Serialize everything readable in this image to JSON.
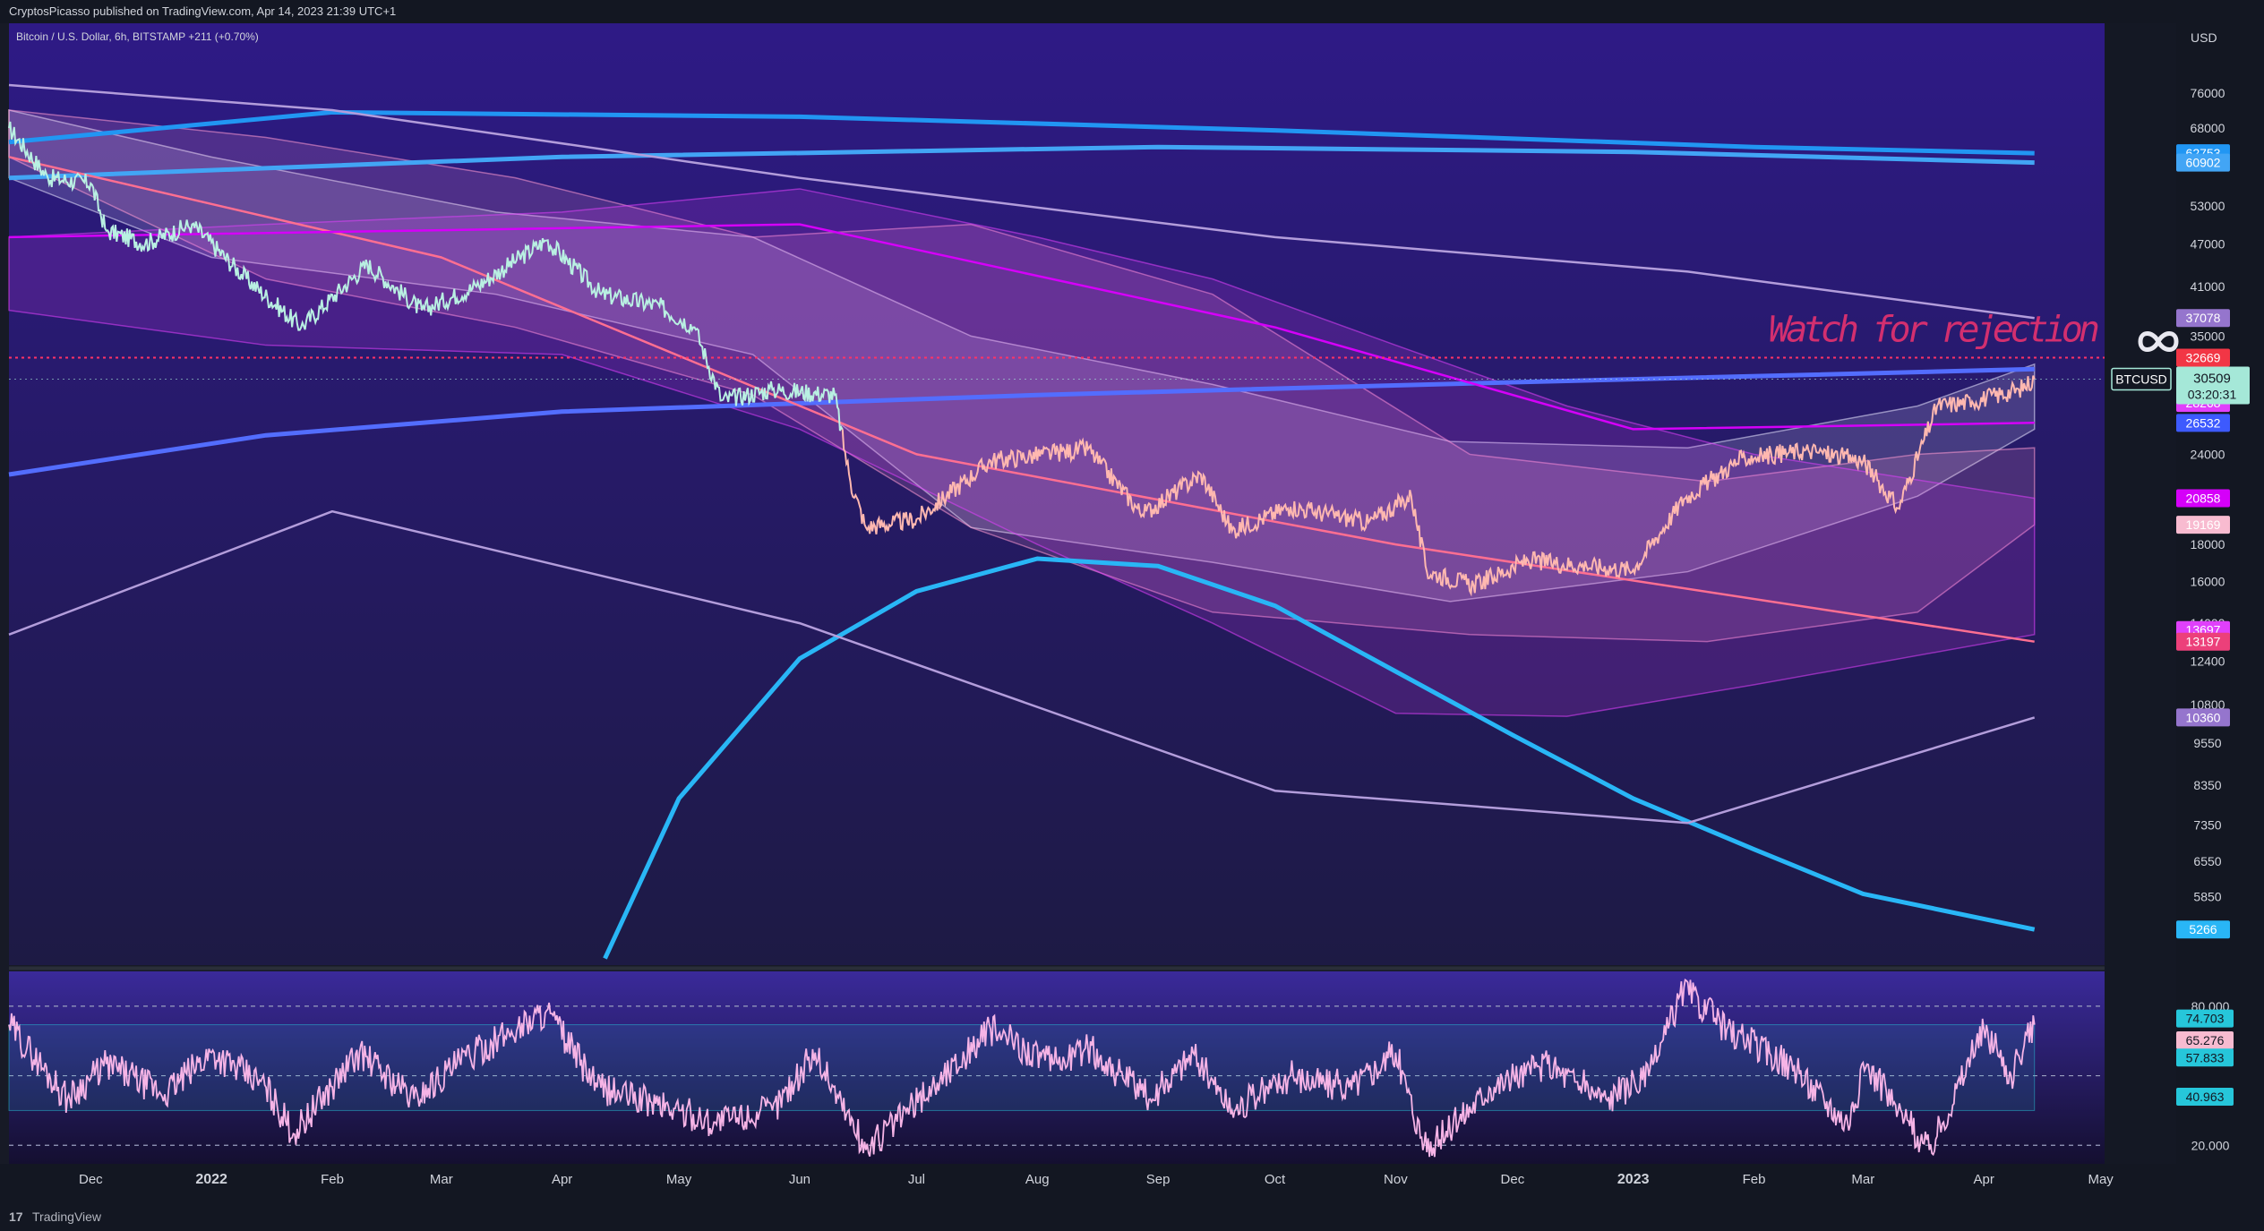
{
  "header": {
    "published": "CryptosPicasso published on TradingView.com, Apr 14, 2023 21:39 UTC+1"
  },
  "footer": {
    "logo_mark": "17",
    "brand": "TradingView"
  },
  "chart_data": [
    {
      "type": "line",
      "symbol_label": "Bitcoin / U.S. Dollar, 6h, BITSTAMP  +211 (+0.70%)",
      "currency": "USD",
      "annotation": "Watch for rejection",
      "annotation_icon": "infinity-icon",
      "scale": "log",
      "ylim": [
        4700,
        95000
      ],
      "y_ticks": [
        76000,
        68000,
        53000,
        47000,
        41000,
        35000,
        24000,
        18000,
        16000,
        14000,
        12400,
        10800,
        9550,
        8350,
        7350,
        6550,
        5850
      ],
      "x_ticks": [
        "Dec",
        "2022",
        "Feb",
        "Mar",
        "Apr",
        "May",
        "Jun",
        "Jul",
        "Aug",
        "Sep",
        "Oct",
        "Nov",
        "Dec",
        "2023",
        "Feb",
        "Mar",
        "Apr",
        "May"
      ],
      "x_tick_dates": [
        "2021-12-01",
        "2022-01-01",
        "2022-02-01",
        "2022-03-01",
        "2022-04-01",
        "2022-05-01",
        "2022-06-01",
        "2022-07-01",
        "2022-08-01",
        "2022-09-01",
        "2022-10-01",
        "2022-11-01",
        "2022-12-01",
        "2023-01-01",
        "2023-02-01",
        "2023-03-01",
        "2023-04-01",
        "2023-05-01"
      ],
      "xlim": [
        "2021-11-10",
        "2023-05-02"
      ],
      "price_series": {
        "name": "BTCUSD",
        "dates": [
          "2021-11-10",
          "2021-11-20",
          "2021-12-01",
          "2021-12-05",
          "2021-12-15",
          "2021-12-27",
          "2022-01-10",
          "2022-01-24",
          "2022-02-10",
          "2022-02-24",
          "2022-03-10",
          "2022-03-28",
          "2022-04-11",
          "2022-04-26",
          "2022-05-05",
          "2022-05-12",
          "2022-05-25",
          "2022-06-10",
          "2022-06-14",
          "2022-06-18",
          "2022-07-01",
          "2022-07-20",
          "2022-08-14",
          "2022-08-28",
          "2022-09-12",
          "2022-09-20",
          "2022-10-05",
          "2022-10-25",
          "2022-11-05",
          "2022-11-09",
          "2022-11-21",
          "2022-12-05",
          "2022-12-20",
          "2023-01-01",
          "2023-01-14",
          "2023-01-29",
          "2023-02-15",
          "2023-03-01",
          "2023-03-10",
          "2023-03-20",
          "2023-03-29",
          "2023-04-10",
          "2023-04-14"
        ],
        "values": [
          68000,
          58000,
          57000,
          49000,
          47000,
          50000,
          42000,
          36000,
          44000,
          38000,
          41000,
          47500,
          40000,
          38500,
          36000,
          28500,
          29500,
          29000,
          22000,
          19000,
          19500,
          23500,
          24400,
          19800,
          22500,
          18800,
          20300,
          19300,
          21000,
          16500,
          15800,
          17100,
          16800,
          16600,
          20800,
          23700,
          24300,
          23500,
          20200,
          28000,
          28400,
          29500,
          30509
        ]
      },
      "bands": [
        {
          "dates": [
            "2021-11-10",
            "2022-01-01",
            "2022-03-15",
            "2022-05-20",
            "2022-07-15",
            "2022-09-15",
            "2022-11-15",
            "2023-01-15",
            "2023-03-15",
            "2023-04-14"
          ],
          "upper": [
            72000,
            62000,
            52000,
            48000,
            35000,
            30000,
            25000,
            24500,
            28000,
            32000
          ],
          "lower": [
            58000,
            45000,
            40000,
            33000,
            19000,
            17000,
            15000,
            16500,
            21000,
            26000
          ],
          "color": "#e8e6ff"
        },
        {
          "dates": [
            "2021-11-10",
            "2022-01-15",
            "2022-03-20",
            "2022-05-20",
            "2022-07-15",
            "2022-09-15",
            "2022-11-20",
            "2023-01-20",
            "2023-03-15",
            "2023-04-14"
          ],
          "upper": [
            72000,
            66000,
            58000,
            48000,
            50000,
            40000,
            24000,
            22000,
            24000,
            24500
          ],
          "lower": [
            62000,
            42000,
            36000,
            29000,
            19000,
            14500,
            13500,
            13200,
            14500,
            19169
          ],
          "color": "#ff9ad1"
        },
        {
          "dates": [
            "2021-11-10",
            "2022-01-15",
            "2022-04-01",
            "2022-06-01",
            "2022-08-01",
            "2022-09-15",
            "2022-11-01",
            "2022-12-15",
            "2023-02-01",
            "2023-04-14"
          ],
          "upper": [
            48000,
            50000,
            52000,
            56000,
            48000,
            42000,
            34000,
            28000,
            24000,
            20858
          ],
          "lower": [
            38000,
            34000,
            33000,
            26000,
            18000,
            14000,
            10500,
            10400,
            11500,
            13500
          ],
          "color": "#e040fb"
        }
      ],
      "lines": [
        {
          "dates": [
            "2021-11-10",
            "2022-02-01",
            "2022-06-01",
            "2022-10-01",
            "2023-02-01",
            "2023-04-14"
          ],
          "values": [
            65000,
            71500,
            70500,
            67500,
            64000,
            62753
          ],
          "color": "#2196f3"
        },
        {
          "dates": [
            "2021-11-10",
            "2022-04-01",
            "2022-09-01",
            "2023-01-01",
            "2023-04-14"
          ],
          "values": [
            58000,
            62000,
            64000,
            63000,
            60902
          ],
          "color": "#42a5f5"
        },
        {
          "dates": [
            "2021-11-10",
            "2022-01-15",
            "2022-04-01",
            "2022-08-01",
            "2022-12-01",
            "2023-04-14"
          ],
          "values": [
            22500,
            25500,
            27500,
            29000,
            30200,
            31500
          ],
          "color": "#536dfe"
        },
        {
          "dates": [
            "2022-04-12",
            "2022-05-01",
            "2022-06-01",
            "2022-07-01",
            "2022-08-01",
            "2022-09-01",
            "2022-10-01",
            "2022-11-01",
            "2022-12-01",
            "2023-01-01",
            "2023-02-01",
            "2023-03-01",
            "2023-04-14"
          ],
          "values": [
            4800,
            8000,
            12500,
            15500,
            17200,
            16800,
            14800,
            12000,
            9800,
            8000,
            6800,
            5900,
            5266
          ],
          "color": "#29b6f6"
        },
        {
          "dates": [
            "2021-11-10",
            "2022-02-01",
            "2022-06-01",
            "2022-10-01",
            "2023-01-15",
            "2023-04-14"
          ],
          "values": [
            78000,
            72000,
            58000,
            48000,
            43000,
            37078
          ],
          "color": "#b39ddb"
        },
        {
          "dates": [
            "2021-11-10",
            "2022-02-01",
            "2022-06-01",
            "2022-10-01",
            "2023-01-15",
            "2023-04-14"
          ],
          "values": [
            13500,
            20000,
            14000,
            8200,
            7400,
            10360
          ],
          "color": "#b39ddb"
        },
        {
          "dates": [
            "2021-11-10",
            "2022-03-01",
            "2022-07-01",
            "2022-11-01",
            "2023-04-14"
          ],
          "values": [
            62000,
            45000,
            24000,
            18000,
            13197
          ],
          "color": "#ff6f91"
        },
        {
          "dates": [
            "2021-11-10",
            "2022-06-01",
            "2022-10-01",
            "2023-01-01",
            "2023-04-14"
          ],
          "values": [
            48000,
            50000,
            36000,
            26000,
            26532
          ],
          "color": "#d500f9"
        }
      ],
      "horizontal_level": {
        "value": 32669,
        "color": "#ff3366"
      },
      "price_labels": [
        {
          "text": "62753",
          "value": 62753,
          "color": "#2196f3"
        },
        {
          "text": "60902",
          "value": 60902,
          "color": "#42a5f5"
        },
        {
          "text": "37078",
          "value": 37078,
          "color": "#9575cd"
        },
        {
          "text": "32669",
          "value": 32669,
          "color": "#f23645"
        },
        {
          "text": "28268",
          "value": 28268,
          "color": "#e040fb"
        },
        {
          "text": "26532",
          "value": 26532,
          "color": "#3d5afe"
        },
        {
          "text": "20858",
          "value": 20858,
          "color": "#d500f9"
        },
        {
          "text": "19169",
          "value": 19169,
          "color": "#f8bbd0"
        },
        {
          "text": "13697",
          "value": 13697,
          "color": "#e040fb"
        },
        {
          "text": "13197",
          "value": 13197,
          "color": "#ec407a"
        },
        {
          "text": "10360",
          "value": 10360,
          "color": "#9575cd"
        },
        {
          "text": "5266",
          "value": 5266,
          "color": "#29b6f6"
        }
      ],
      "last_price": {
        "symbol": "BTCUSD",
        "price": "30509",
        "countdown": "03:20:31",
        "value": 30509,
        "color": "#a5e8d8"
      }
    },
    {
      "type": "line",
      "name": "oscillator",
      "ylim": [
        12,
        95
      ],
      "y_ticks": [
        80.0,
        20.0
      ],
      "y_tick_labels": [
        "80.000",
        "20.000"
      ],
      "levels": [
        80,
        50,
        20
      ],
      "series": {
        "dates": [
          "2021-11-10",
          "2021-11-25",
          "2021-12-05",
          "2021-12-20",
          "2022-01-01",
          "2022-01-15",
          "2022-01-22",
          "2022-02-08",
          "2022-02-22",
          "2022-03-05",
          "2022-03-28",
          "2022-04-10",
          "2022-04-25",
          "2022-05-10",
          "2022-05-25",
          "2022-06-05",
          "2022-06-18",
          "2022-07-05",
          "2022-07-20",
          "2022-08-05",
          "2022-08-14",
          "2022-08-30",
          "2022-09-10",
          "2022-09-20",
          "2022-10-05",
          "2022-10-20",
          "2022-11-01",
          "2022-11-09",
          "2022-11-25",
          "2022-12-10",
          "2022-12-25",
          "2023-01-05",
          "2023-01-14",
          "2023-01-25",
          "2023-02-10",
          "2023-02-25",
          "2023-03-02",
          "2023-03-10",
          "2023-03-18",
          "2023-04-01",
          "2023-04-08",
          "2023-04-14"
        ],
        "values": [
          72,
          40,
          55,
          42,
          60,
          45,
          25,
          60,
          40,
          55,
          78,
          45,
          38,
          30,
          35,
          60,
          18,
          45,
          70,
          55,
          62,
          40,
          60,
          35,
          50,
          45,
          60,
          17,
          45,
          55,
          40,
          50,
          88,
          70,
          55,
          30,
          55,
          35,
          18,
          70,
          50,
          72
        ]
      },
      "band": {
        "upper": 72,
        "lower": 35
      },
      "value_labels": [
        {
          "text": "74.703",
          "value": 74.703,
          "color": "#26c6da"
        },
        {
          "text": "65.276",
          "value": 65.276,
          "color": "#f8bbd0"
        },
        {
          "text": "57.833",
          "value": 57.833,
          "color": "#26c6da"
        },
        {
          "text": "40.963",
          "value": 40.963,
          "color": "#26c6da"
        }
      ]
    }
  ],
  "colors": {
    "bg_top": "#2e1a86",
    "bg_bottom": "#1d1a44",
    "annotation": "#d32f6f",
    "price_line_early": "#b9f0e2",
    "price_line_late": "#ffb8b0",
    "osc_line": "#f6b4e6"
  }
}
